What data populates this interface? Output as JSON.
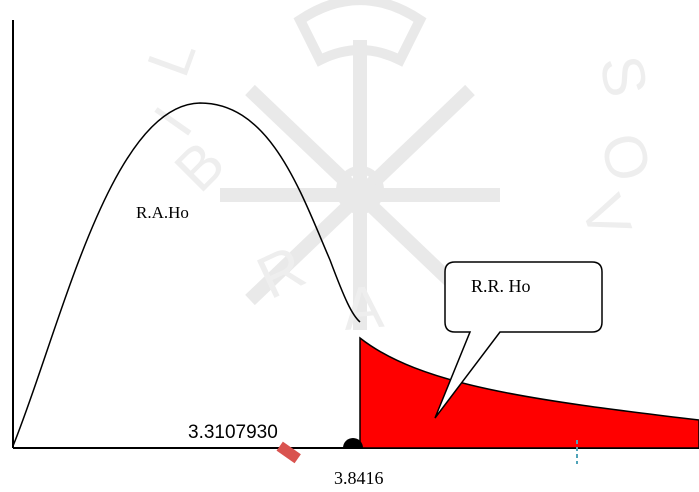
{
  "diagram": {
    "acceptance_label": "R.A.Ho",
    "rejection_label": "R.R. Ho",
    "computed_value": "3.3107930",
    "critical_value": "3.8416",
    "watermark_letters": [
      "L",
      "I",
      "B",
      "R",
      "A",
      "V",
      "O",
      "S"
    ]
  },
  "colors": {
    "rejection_fill": "#ff0000",
    "curve": "#000000",
    "axis": "#000000",
    "marker": "#d9534f",
    "tick": "#4fa3b8",
    "watermark": "#e6e6e6"
  }
}
